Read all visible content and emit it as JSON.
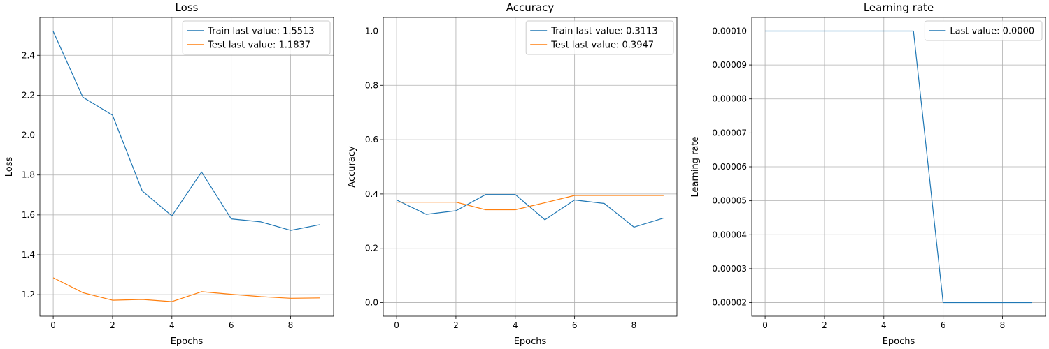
{
  "chart_data": [
    {
      "type": "line",
      "title": "Loss",
      "xlabel": "Epochs",
      "ylabel": "Loss",
      "xlim": [
        -0.45,
        9.45
      ],
      "ylim": [
        1.092,
        2.59
      ],
      "xticks": [
        0,
        2,
        4,
        6,
        8
      ],
      "yticks": [
        1.2,
        1.4,
        1.6,
        1.8,
        2.0,
        2.2,
        2.4
      ],
      "ytick_labels": [
        "1.2",
        "1.4",
        "1.6",
        "1.8",
        "2.0",
        "2.2",
        "2.4"
      ],
      "grid": true,
      "legend_position": "top-right",
      "x": [
        0,
        1,
        2,
        3,
        4,
        5,
        6,
        7,
        8,
        9
      ],
      "series": [
        {
          "name": "Train last value: 1.5513",
          "color": "#1f77b4",
          "values": [
            2.52,
            2.19,
            2.1,
            1.72,
            1.595,
            1.815,
            1.58,
            1.565,
            1.522,
            1.5513
          ]
        },
        {
          "name": "Test last value: 1.1837",
          "color": "#ff7f0e",
          "values": [
            1.285,
            1.21,
            1.172,
            1.176,
            1.165,
            1.215,
            1.202,
            1.19,
            1.182,
            1.1837
          ]
        }
      ]
    },
    {
      "type": "line",
      "title": "Accuracy",
      "xlabel": "Epochs",
      "ylabel": "Accuracy",
      "xlim": [
        -0.45,
        9.45
      ],
      "ylim": [
        -0.05,
        1.05
      ],
      "xticks": [
        0,
        2,
        4,
        6,
        8
      ],
      "yticks": [
        0.0,
        0.2,
        0.4,
        0.6,
        0.8,
        1.0
      ],
      "ytick_labels": [
        "0.0",
        "0.2",
        "0.4",
        "0.6",
        "0.8",
        "1.0"
      ],
      "grid": true,
      "legend_position": "top-right",
      "x": [
        0,
        1,
        2,
        3,
        4,
        5,
        6,
        7,
        8,
        9
      ],
      "series": [
        {
          "name": "Train last value: 0.3113",
          "color": "#1f77b4",
          "values": [
            0.378,
            0.325,
            0.338,
            0.398,
            0.398,
            0.305,
            0.378,
            0.365,
            0.278,
            0.3113
          ]
        },
        {
          "name": "Test last value: 0.3947",
          "color": "#ff7f0e",
          "values": [
            0.37,
            0.37,
            0.37,
            0.342,
            0.342,
            0.368,
            0.3947,
            0.3947,
            0.3947,
            0.3947
          ]
        }
      ]
    },
    {
      "type": "line",
      "title": "Learning rate",
      "xlabel": "Epochs",
      "ylabel": "Learning rate",
      "xlim": [
        -0.45,
        9.45
      ],
      "ylim": [
        1.6e-05,
        0.000104
      ],
      "xticks": [
        0,
        2,
        4,
        6,
        8
      ],
      "yticks": [
        2e-05,
        3e-05,
        4e-05,
        5e-05,
        6e-05,
        7e-05,
        8e-05,
        9e-05,
        0.0001
      ],
      "ytick_labels": [
        "0.00002",
        "0.00003",
        "0.00004",
        "0.00005",
        "0.00006",
        "0.00007",
        "0.00008",
        "0.00009",
        "0.00010"
      ],
      "grid": true,
      "legend_position": "top-right",
      "x": [
        0,
        1,
        2,
        3,
        4,
        5,
        6,
        7,
        8,
        9
      ],
      "series": [
        {
          "name": "Last value: 0.0000",
          "color": "#1f77b4",
          "values": [
            0.0001,
            0.0001,
            0.0001,
            0.0001,
            0.0001,
            0.0001,
            2e-05,
            2e-05,
            2e-05,
            2e-05
          ]
        }
      ]
    }
  ]
}
